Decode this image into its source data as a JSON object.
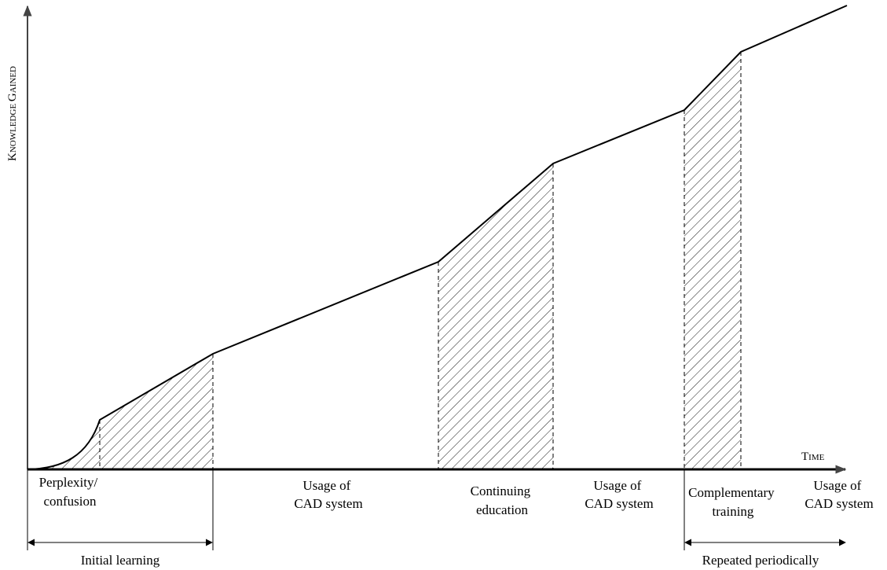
{
  "axes": {
    "y_label": "Knowledge gained",
    "x_label": "Time"
  },
  "phases": [
    {
      "lines": [
        "Perplexity/",
        "confusion"
      ]
    },
    {
      "lines": [
        "Usage of",
        "CAD system"
      ]
    },
    {
      "lines": [
        "Continuing",
        "education"
      ]
    },
    {
      "lines": [
        "Usage of",
        "CAD system"
      ]
    },
    {
      "lines": [
        "Complementary",
        "training"
      ]
    },
    {
      "lines": [
        "Usage of",
        "CAD system"
      ]
    }
  ],
  "brackets": {
    "initial": "Initial learning",
    "repeated": "Repeated periodically"
  }
}
